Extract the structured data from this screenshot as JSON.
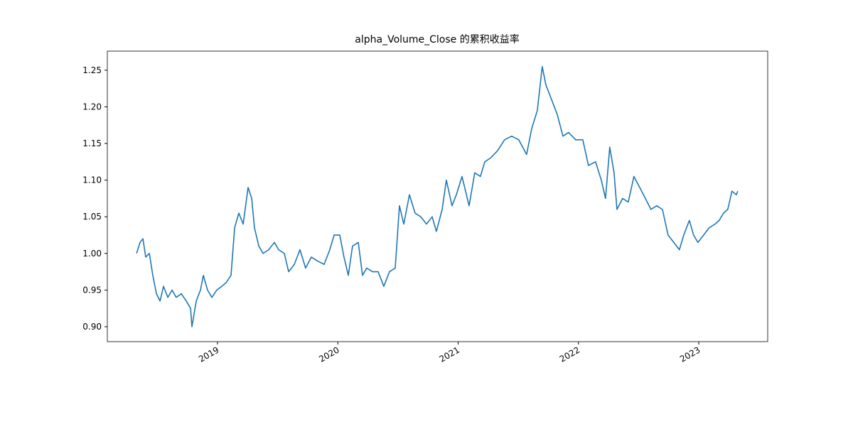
{
  "chart_data": {
    "type": "line",
    "title": "alpha_Volume_Close 的累积收益率",
    "x": [
      2018.327,
      2018.356,
      2018.38,
      2018.403,
      2018.433,
      2018.462,
      2018.492,
      2018.522,
      2018.551,
      2018.587,
      2018.622,
      2018.657,
      2018.699,
      2018.74,
      2018.776,
      2018.787,
      2018.823,
      2018.858,
      2018.882,
      2018.917,
      2018.953,
      2018.994,
      2019.035,
      2019.071,
      2019.112,
      2019.142,
      2019.177,
      2019.213,
      2019.254,
      2019.284,
      2019.307,
      2019.343,
      2019.378,
      2019.425,
      2019.473,
      2019.508,
      2019.555,
      2019.591,
      2019.638,
      2019.685,
      2019.732,
      2019.78,
      2019.827,
      2019.886,
      2019.933,
      2019.969,
      2020.016,
      2020.051,
      2020.087,
      2020.122,
      2020.17,
      2020.205,
      2020.24,
      2020.288,
      2020.335,
      2020.382,
      2020.429,
      2020.477,
      2020.512,
      2020.548,
      2020.595,
      2020.642,
      2020.689,
      2020.737,
      2020.784,
      2020.819,
      2020.867,
      2020.902,
      2020.949,
      2020.985,
      2021.032,
      2021.091,
      2021.138,
      2021.185,
      2021.221,
      2021.268,
      2021.327,
      2021.386,
      2021.445,
      2021.504,
      2021.569,
      2021.611,
      2021.658,
      2021.699,
      2021.729,
      2021.776,
      2021.823,
      2021.871,
      2021.918,
      2021.977,
      2022.036,
      2022.083,
      2022.142,
      2022.19,
      2022.225,
      2022.26,
      2022.296,
      2022.32,
      2022.367,
      2022.414,
      2022.461,
      2022.509,
      2022.556,
      2022.603,
      2022.65,
      2022.698,
      2022.745,
      2022.792,
      2022.839,
      2022.875,
      2022.922,
      2022.957,
      2022.993,
      2023.04,
      2023.087,
      2023.135,
      2023.17,
      2023.206,
      2023.241,
      2023.276,
      2023.312,
      2023.324
    ],
    "series": [
      {
        "color": "#1f77b4",
        "values": [
          1.0,
          1.015,
          1.02,
          0.995,
          1.0,
          0.97,
          0.945,
          0.935,
          0.955,
          0.94,
          0.95,
          0.94,
          0.945,
          0.935,
          0.925,
          0.9,
          0.935,
          0.95,
          0.97,
          0.95,
          0.94,
          0.95,
          0.955,
          0.96,
          0.97,
          1.035,
          1.055,
          1.04,
          1.09,
          1.075,
          1.035,
          1.01,
          1.0,
          1.005,
          1.015,
          1.005,
          1.0,
          0.975,
          0.985,
          1.005,
          0.98,
          0.995,
          0.99,
          0.985,
          1.005,
          1.025,
          1.025,
          0.995,
          0.97,
          1.01,
          1.015,
          0.97,
          0.98,
          0.975,
          0.975,
          0.955,
          0.975,
          0.98,
          1.065,
          1.04,
          1.08,
          1.055,
          1.05,
          1.04,
          1.05,
          1.03,
          1.06,
          1.1,
          1.065,
          1.08,
          1.105,
          1.065,
          1.11,
          1.105,
          1.125,
          1.13,
          1.14,
          1.155,
          1.16,
          1.155,
          1.135,
          1.17,
          1.195,
          1.255,
          1.23,
          1.21,
          1.19,
          1.16,
          1.165,
          1.155,
          1.155,
          1.12,
          1.125,
          1.1,
          1.075,
          1.145,
          1.11,
          1.06,
          1.075,
          1.07,
          1.105,
          1.09,
          1.075,
          1.06,
          1.065,
          1.06,
          1.025,
          1.015,
          1.005,
          1.025,
          1.045,
          1.025,
          1.015,
          1.025,
          1.035,
          1.04,
          1.045,
          1.055,
          1.06,
          1.085,
          1.08,
          1.085
        ]
      }
    ],
    "xlim": [
      2018.084,
      2023.573
    ],
    "xticks": [
      2019,
      2020,
      2021,
      2022,
      2023
    ],
    "ylim": [
      0.8796,
      1.276
    ],
    "yticks": [
      {
        "value": 0.9,
        "label": "0.90"
      },
      0.95,
      {
        "value": 1.0,
        "label": "1.00"
      },
      1.05,
      {
        "value": 1.1,
        "label": "1.10"
      },
      1.15,
      {
        "value": 1.2,
        "label": "1.20"
      },
      1.25
    ]
  }
}
